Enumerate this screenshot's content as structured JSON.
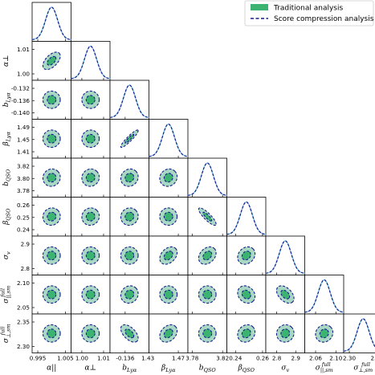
{
  "chart_data": {
    "type": "corner",
    "parameters": [
      {
        "name": "α||",
        "label": "α||",
        "sub": "",
        "ticks": [
          "0.995",
          "1.005"
        ],
        "tick_values": [
          0.995,
          1.005
        ],
        "mean": 1.0,
        "sigma": 0.0022
      },
      {
        "name": "α⊥",
        "label": "α⊥",
        "sub": "",
        "ticks": [
          "1.00",
          "1.01"
        ],
        "tick_values": [
          1.0,
          1.01
        ],
        "mean": 1.004,
        "sigma": 0.0028
      },
      {
        "name": "b_Lyα",
        "label": "b",
        "sub": "Lyα",
        "ticks": [
          "-0.136"
        ],
        "tick_values": [
          -0.136
        ],
        "mean": -0.1355,
        "sigma": 0.0007
      },
      {
        "name": "β_Lyα",
        "label": "β",
        "sub": "Lyα",
        "ticks": [
          "1.43",
          "1.47"
        ],
        "tick_values": [
          1.43,
          1.47
        ],
        "mean": 1.457,
        "sigma": 0.008
      },
      {
        "name": "b_QSO",
        "label": "b",
        "sub": "QSO",
        "ticks": [
          "3.78",
          "3.82"
        ],
        "tick_values": [
          3.78,
          3.82
        ],
        "mean": 3.8,
        "sigma": 0.008
      },
      {
        "name": "β_QSO",
        "label": "β",
        "sub": "QSO",
        "ticks": [
          "0.24",
          "0.26"
        ],
        "tick_values": [
          0.24,
          0.26
        ],
        "mean": 0.248,
        "sigma": 0.0045
      },
      {
        "name": "σ_v",
        "label": "σ",
        "sub": "v",
        "ticks": [
          "2.8",
          "2.9"
        ],
        "tick_values": [
          2.8,
          2.9
        ],
        "mean": 2.845,
        "sigma": 0.032
      },
      {
        "name": "σ||,sm full",
        "label": "σ",
        "sub": "||,sm",
        "sup": "full",
        "ticks": [
          "2.06",
          "2.10"
        ],
        "tick_values": [
          2.06,
          2.1
        ],
        "mean": 2.077,
        "sigma": 0.012
      },
      {
        "name": "σ⊥,sm full",
        "label": "σ",
        "sub": "⊥,sm",
        "sup": "full",
        "ticks": [
          "2.30",
          "2.35"
        ],
        "tick_values": [
          2.3,
          2.35
        ],
        "mean": 2.325,
        "sigma": 0.011
      }
    ],
    "row_ticks": {
      "1": [
        "1.01",
        "1.00"
      ],
      "2": [
        "-0.132",
        "-0.136",
        "-0.140"
      ],
      "3": [
        "1.49",
        "1.45",
        "1.41"
      ],
      "4": [
        "3.82",
        "3.80",
        "3.78"
      ],
      "5": [
        "0.26",
        "0.25",
        "0.24"
      ],
      "6": [
        "2.9",
        "2.8"
      ],
      "7": [
        "2.10",
        "2.05"
      ],
      "8": [
        "2.35",
        "2.30"
      ]
    },
    "correlations": {
      "1-0": 0.55,
      "2-0": 0.0,
      "2-1": 0.0,
      "3-0": 0.0,
      "3-1": 0.0,
      "3-2": 0.92,
      "4-0": 0.05,
      "4-1": 0.05,
      "4-2": 0.1,
      "4-3": 0.1,
      "5-0": 0.05,
      "5-1": 0.05,
      "5-2": 0.05,
      "5-3": 0.0,
      "5-4": -0.85,
      "6-0": 0.0,
      "6-1": 0.0,
      "6-2": 0.0,
      "6-3": 0.35,
      "6-4": 0.3,
      "6-5": 0.2,
      "7-0": 0.0,
      "7-1": 0.0,
      "7-2": 0.1,
      "7-3": 0.0,
      "7-4": 0.0,
      "7-5": -0.2,
      "7-6": -0.45,
      "8-0": 0.0,
      "8-1": 0.0,
      "8-2": -0.55,
      "8-3": 0.3,
      "8-4": 0.0,
      "8-5": 0.15,
      "8-6": 0.05,
      "8-7": 0.1
    },
    "series": [
      {
        "name": "Traditional analysis",
        "style": "filled contours",
        "color": "#3cb371"
      },
      {
        "name": "Score compression analysis",
        "style": "dashed contours",
        "color": "#1a1a8c"
      }
    ],
    "legend_position": "top-right",
    "grid": false
  }
}
